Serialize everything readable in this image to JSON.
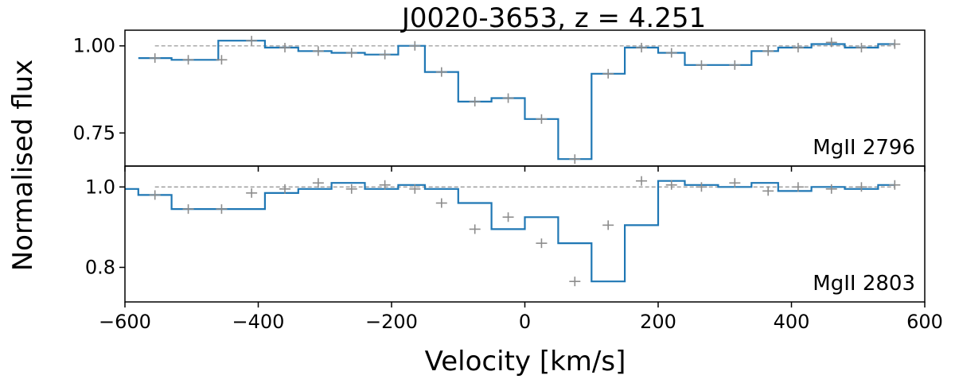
{
  "chart_data": {
    "type": "line",
    "title": "J0020-3653,    z = 4.251",
    "xlabel": "Velocity [km/s]",
    "ylabel": "Normalised flux",
    "xlim": [
      -600,
      600
    ],
    "x_ticks": [
      -600,
      -400,
      -200,
      0,
      200,
      400,
      600
    ],
    "x_tick_labels": [
      "−600",
      "−400",
      "−200",
      "0",
      "200",
      "400",
      "600"
    ],
    "grid": false,
    "legend": "none",
    "step_color": "#1f77b4",
    "error_color": "#8c8c8c",
    "reference_color": "#999999",
    "panels": [
      {
        "annotation": "MgII 2796",
        "ylim": [
          0.655,
          1.045
        ],
        "y_ticks": [
          0.75,
          1.0
        ],
        "y_tick_labels": [
          "0.75",
          "1.00"
        ],
        "reference_level": 1.0,
        "edges": [
          -580,
          -530,
          -460,
          -390,
          -340,
          -290,
          -240,
          -190,
          -150,
          -100,
          -50,
          0,
          50,
          100,
          150,
          200,
          240,
          290,
          340,
          380,
          430,
          480,
          530
        ],
        "flux": [
          0.965,
          0.96,
          1.015,
          0.995,
          0.985,
          0.98,
          0.975,
          1.0,
          0.925,
          0.84,
          0.85,
          0.79,
          0.675,
          0.92,
          0.995,
          0.98,
          0.945,
          0.945,
          0.985,
          0.995,
          1.005,
          0.995,
          1.005
        ],
        "error_points": {
          "x": [
            -555,
            -505,
            -455,
            -410,
            -360,
            -310,
            -260,
            -210,
            -165,
            -125,
            -75,
            -25,
            25,
            75,
            125,
            175,
            220,
            265,
            315,
            365,
            410,
            460,
            505,
            555
          ],
          "y": [
            0.965,
            0.96,
            0.96,
            1.015,
            0.995,
            0.985,
            0.98,
            0.975,
            1.0,
            0.925,
            0.84,
            0.85,
            0.79,
            0.675,
            0.92,
            0.995,
            0.98,
            0.945,
            0.945,
            0.985,
            0.995,
            1.01,
            0.995,
            1.005
          ]
        }
      },
      {
        "annotation": "MgII 2803",
        "ylim": [
          0.714,
          1.052
        ],
        "y_ticks": [
          0.8,
          1.0
        ],
        "y_tick_labels": [
          "0.8",
          "1.0"
        ],
        "reference_level": 1.0,
        "edges": [
          -600,
          -580,
          -530,
          -460,
          -390,
          -340,
          -290,
          -240,
          -190,
          -150,
          -100,
          -50,
          0,
          50,
          100,
          150,
          200,
          240,
          290,
          340,
          380,
          430,
          480,
          530
        ],
        "flux": [
          0.995,
          0.98,
          0.945,
          0.945,
          0.985,
          0.995,
          1.01,
          0.995,
          1.005,
          0.995,
          0.96,
          0.895,
          0.925,
          0.86,
          0.765,
          0.905,
          1.015,
          1.005,
          1.0,
          1.01,
          0.99,
          1.0,
          0.995,
          1.005
        ],
        "error_points": {
          "x": [
            -555,
            -505,
            -455,
            -410,
            -360,
            -310,
            -260,
            -210,
            -165,
            -125,
            -75,
            -25,
            25,
            75,
            125,
            175,
            220,
            265,
            315,
            365,
            410,
            460,
            505,
            555
          ],
          "y": [
            0.98,
            0.945,
            0.945,
            0.985,
            0.995,
            1.01,
            0.995,
            1.005,
            0.995,
            0.96,
            0.895,
            0.925,
            0.86,
            0.765,
            0.905,
            1.015,
            1.005,
            1.0,
            1.01,
            0.99,
            1.0,
            0.995,
            1.0,
            1.005
          ]
        }
      }
    ]
  }
}
